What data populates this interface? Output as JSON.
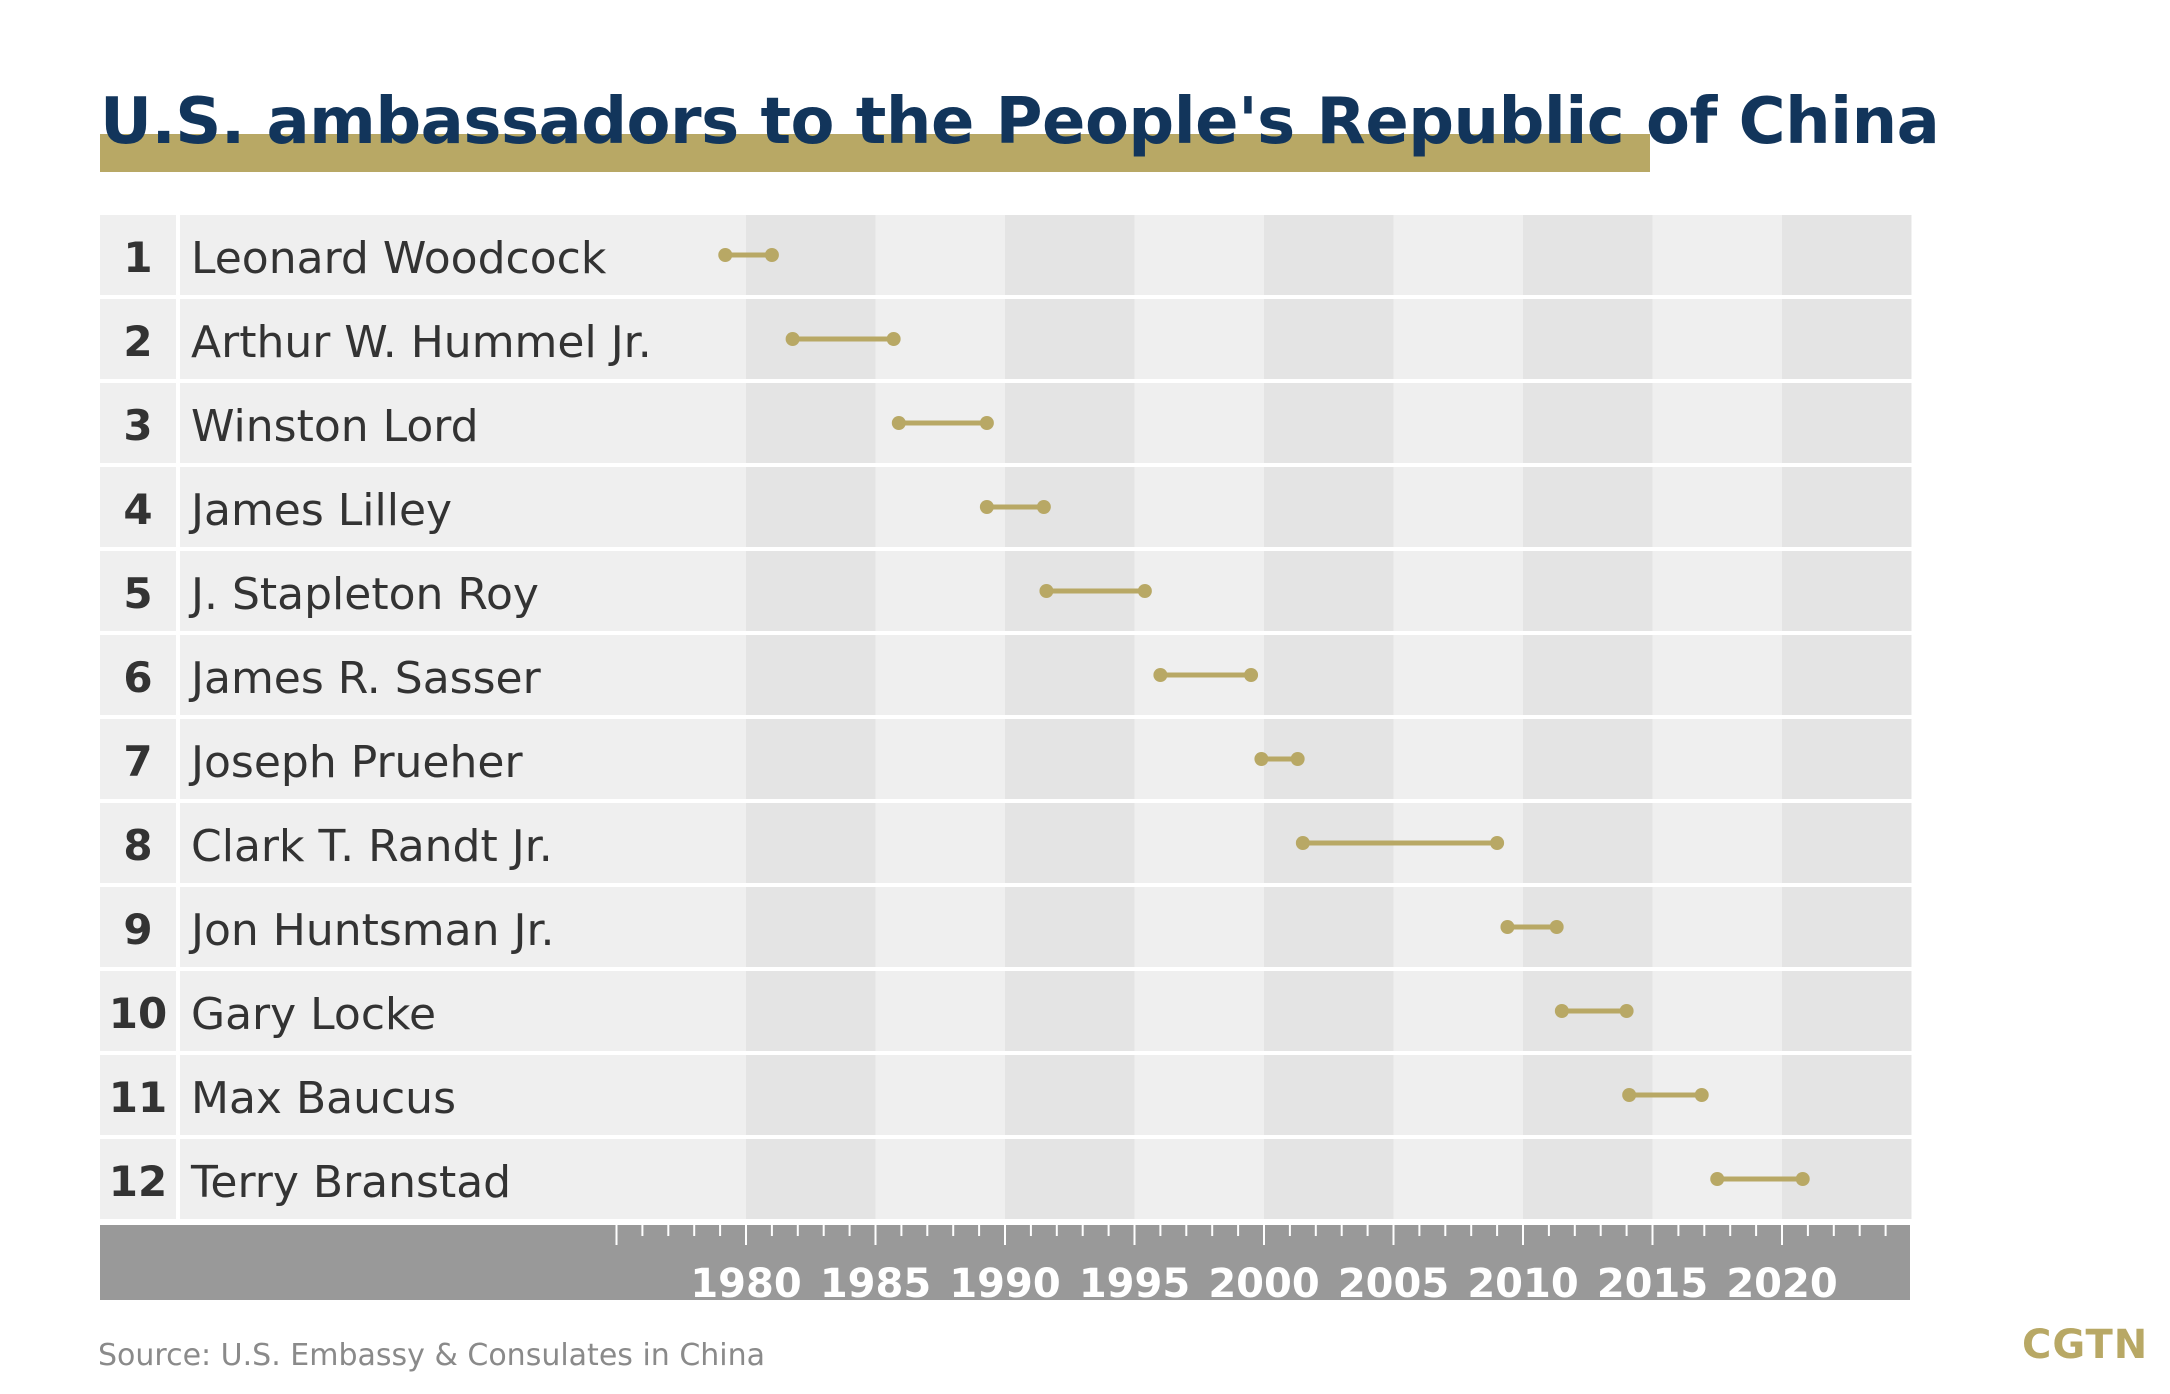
{
  "colors": {
    "title": "#12355b",
    "accent": "#b8a865",
    "axis": "#999999",
    "band_dark": "#e4e4e4",
    "band_light": "#efefef"
  },
  "logo": "CGTN",
  "source": "Source: U.S. Embassy & Consulates in China",
  "chart_data": {
    "type": "range",
    "title": "U.S. ambassadors to the People's Republic of China",
    "xlim": [
      1975,
      2025
    ],
    "x_ticks": [
      1980,
      1985,
      1990,
      1995,
      2000,
      2005,
      2010,
      2015,
      2020
    ],
    "grid": "alternating vertical bands every 5 years",
    "series": [
      {
        "number": "1",
        "name": "Leonard Woodcock",
        "start": 1979.2,
        "end": 1981.0
      },
      {
        "number": "2",
        "name": "Arthur W. Hummel Jr.",
        "start": 1981.8,
        "end": 1985.7
      },
      {
        "number": "3",
        "name": "Winston Lord",
        "start": 1985.9,
        "end": 1989.3
      },
      {
        "number": "4",
        "name": "James Lilley",
        "start": 1989.3,
        "end": 1991.5
      },
      {
        "number": "5",
        "name": "J. Stapleton Roy",
        "start": 1991.6,
        "end": 1995.4
      },
      {
        "number": "6",
        "name": "James R. Sasser",
        "start": 1996.0,
        "end": 1999.5
      },
      {
        "number": "7",
        "name": "Joseph Prueher",
        "start": 1999.9,
        "end": 2001.3
      },
      {
        "number": "8",
        "name": "Clark T. Randt Jr.",
        "start": 2001.5,
        "end": 2009.0
      },
      {
        "number": "9",
        "name": "Jon Huntsman Jr.",
        "start": 2009.4,
        "end": 2011.3
      },
      {
        "number": "10",
        "name": "Gary Locke",
        "start": 2011.5,
        "end": 2014.0
      },
      {
        "number": "11",
        "name": "Max Baucus",
        "start": 2014.1,
        "end": 2016.9
      },
      {
        "number": "12",
        "name": "Terry Branstad",
        "start": 2017.5,
        "end": 2020.8
      }
    ]
  }
}
